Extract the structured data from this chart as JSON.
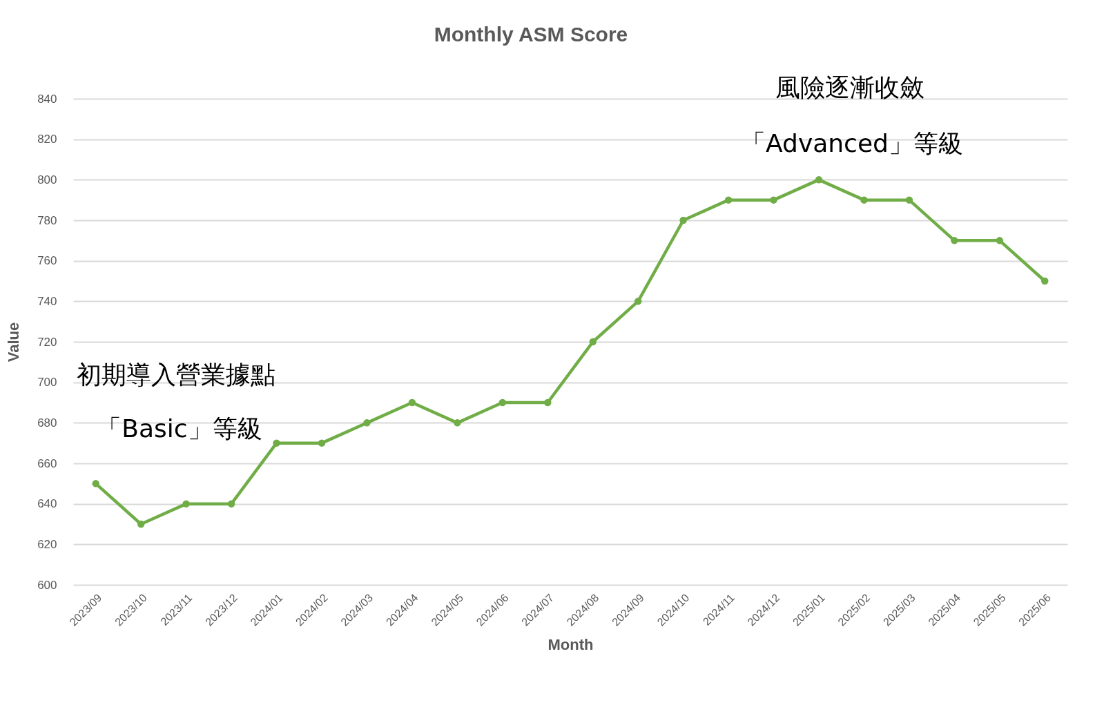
{
  "chart_data": {
    "type": "line",
    "title": "Monthly ASM Score",
    "xlabel": "Month",
    "ylabel": "Value",
    "categories": [
      "2023/09",
      "2023/10",
      "2023/11",
      "2023/12",
      "2024/01",
      "2024/02",
      "2024/03",
      "2024/04",
      "2024/05",
      "2024/06",
      "2024/07",
      "2024/08",
      "2024/09",
      "2024/10",
      "2024/11",
      "2024/12",
      "2025/01",
      "2025/02",
      "2025/03",
      "2025/04",
      "2025/05",
      "2025/06"
    ],
    "series": [
      {
        "color": "#70ad47",
        "values": [
          650,
          630,
          640,
          640,
          670,
          670,
          680,
          690,
          680,
          690,
          690,
          720,
          740,
          780,
          790,
          790,
          800,
          790,
          790,
          770,
          770,
          750
        ]
      }
    ],
    "ylim": [
      600,
      840
    ],
    "yticks": [
      600,
      620,
      640,
      660,
      680,
      700,
      720,
      740,
      760,
      780,
      800,
      820,
      840
    ],
    "grid": "y",
    "marker": "circle",
    "line_style": "solid",
    "annotations": [
      "初期導入營業據點",
      "「Basic」等級",
      "風險逐漸收斂",
      "「Advanced」等級"
    ]
  }
}
